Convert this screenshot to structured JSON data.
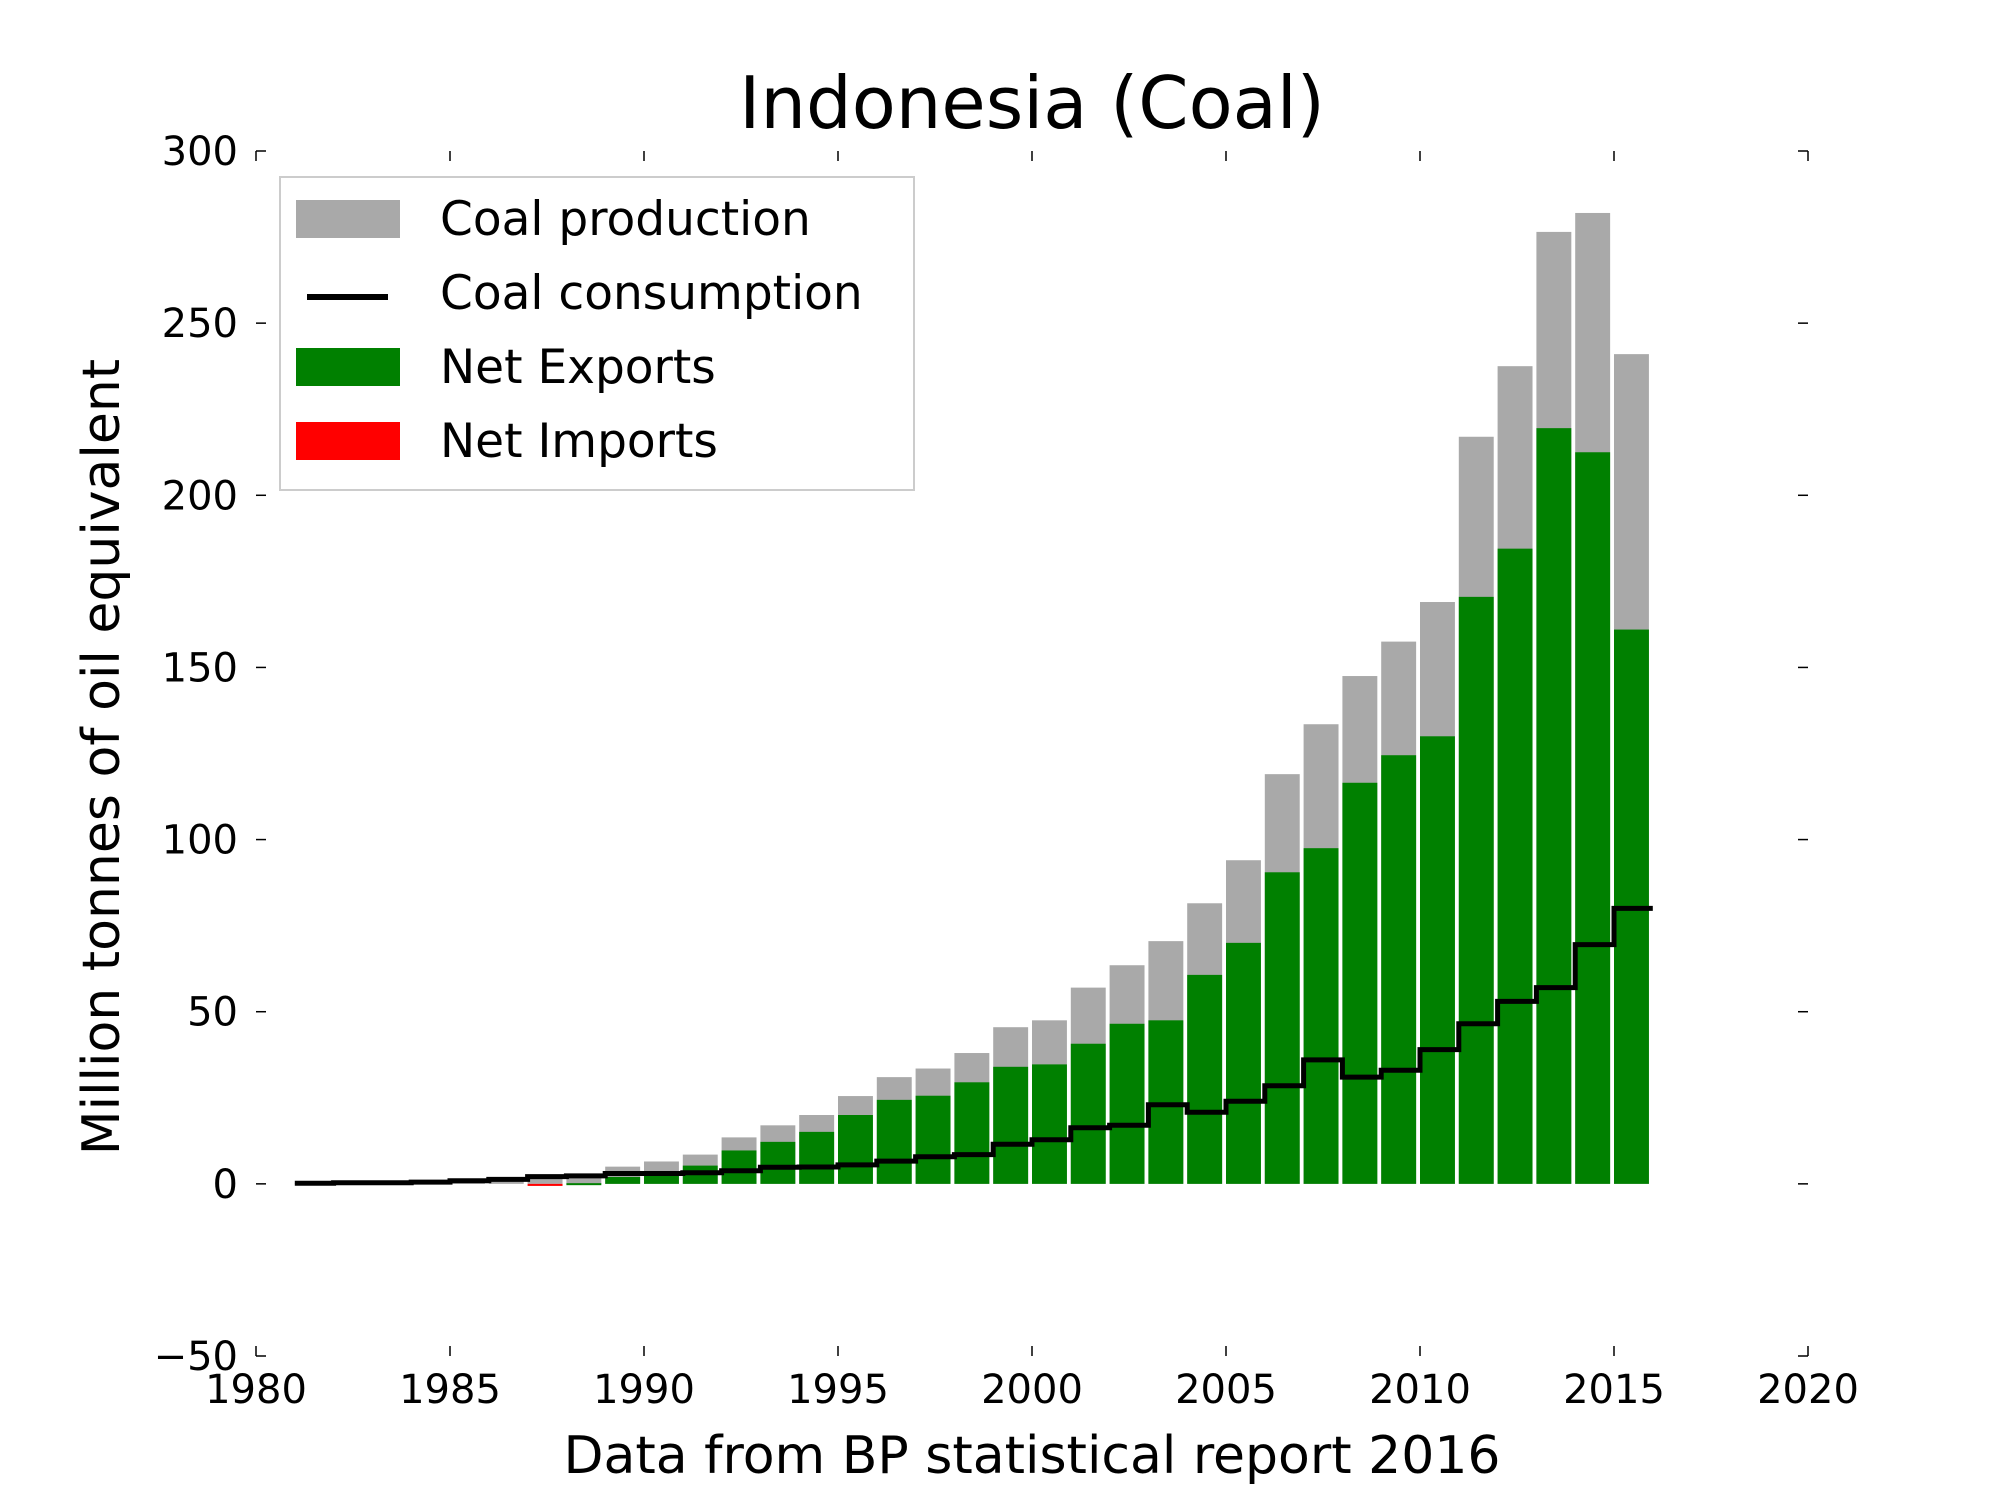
{
  "chart_data": {
    "type": "bar",
    "title": "Indonesia (Coal)",
    "xlabel": "Data from BP statistical report 2016",
    "ylabel": "Million tonnes of oil equivalent",
    "xlim": [
      1980,
      2020
    ],
    "ylim": [
      -50,
      300
    ],
    "x_ticks": [
      1980,
      1985,
      1990,
      1995,
      2000,
      2005,
      2010,
      2015,
      2020
    ],
    "x_tick_labels": [
      "1980",
      "1985",
      "1990",
      "1995",
      "2000",
      "2005",
      "2010",
      "2015",
      "2020"
    ],
    "y_ticks": [
      -50,
      0,
      50,
      100,
      150,
      200,
      250,
      300
    ],
    "y_tick_labels": [
      "−50",
      "0",
      "50",
      "100",
      "150",
      "200",
      "250",
      "300"
    ],
    "grid": false,
    "legend_position": "top-left",
    "legend": [
      {
        "label": "Coal production",
        "kind": "patch",
        "color": "#a9a9a9"
      },
      {
        "label": "Coal consumption",
        "kind": "line",
        "color": "#000000"
      },
      {
        "label": "Net Exports",
        "kind": "patch",
        "color": "#008000"
      },
      {
        "label": "Net Imports",
        "kind": "patch",
        "color": "#ff0000"
      }
    ],
    "colors": {
      "production": "#a9a9a9",
      "consumption": "#000000",
      "net_exports": "#008000",
      "net_imports": "#ff0000"
    },
    "years": [
      1981,
      1982,
      1983,
      1984,
      1985,
      1986,
      1987,
      1988,
      1989,
      1990,
      1991,
      1992,
      1993,
      1994,
      1995,
      1996,
      1997,
      1998,
      1999,
      2000,
      2001,
      2002,
      2003,
      2004,
      2005,
      2006,
      2007,
      2008,
      2009,
      2010,
      2011,
      2012,
      2013,
      2014,
      2015
    ],
    "series": [
      {
        "name": "Coal production",
        "values": [
          0.2,
          0.3,
          0.3,
          0.5,
          0.9,
          1.3,
          1.5,
          2.5,
          5.0,
          6.5,
          8.5,
          13.5,
          17.0,
          20.0,
          25.5,
          31.0,
          33.5,
          38.0,
          45.5,
          47.5,
          57.0,
          63.5,
          70.5,
          81.5,
          94.0,
          119.0,
          133.5,
          147.5,
          157.5,
          169.0,
          217.0,
          237.5,
          276.5,
          282.0,
          241.0
        ]
      },
      {
        "name": "Coal consumption",
        "values": [
          0.2,
          0.3,
          0.3,
          0.5,
          0.9,
          1.3,
          2.1,
          2.3,
          3.0,
          3.0,
          3.2,
          3.8,
          4.8,
          4.9,
          5.5,
          6.6,
          7.9,
          8.5,
          11.5,
          12.8,
          16.3,
          17.0,
          23.0,
          20.8,
          24.0,
          28.5,
          36.0,
          31.0,
          33.0,
          39.0,
          46.5,
          53.0,
          57.0,
          69.5,
          80.0
        ]
      },
      {
        "name": "Net Exports",
        "values": [
          0.0,
          0.0,
          0.0,
          0.0,
          0.0,
          0.0,
          -0.6,
          0.2,
          2.0,
          3.5,
          5.3,
          9.7,
          12.2,
          15.1,
          20.0,
          24.4,
          25.6,
          29.5,
          34.0,
          34.7,
          40.7,
          46.5,
          47.5,
          60.7,
          70.0,
          90.5,
          97.5,
          116.5,
          124.5,
          130.0,
          170.5,
          184.5,
          219.5,
          212.5,
          161.0
        ]
      }
    ]
  }
}
